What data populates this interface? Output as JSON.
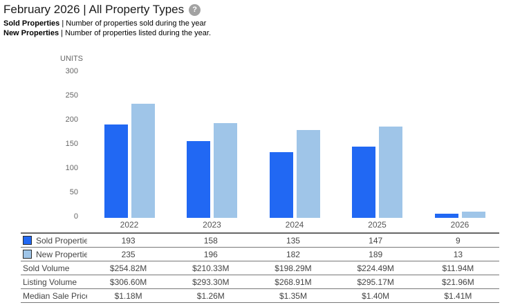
{
  "header": {
    "title": "February 2026 | All Property Types",
    "help_glyph": "?"
  },
  "notes": [
    {
      "term": "Sold Properties",
      "rest": "| Number of properties sold during the year"
    },
    {
      "term": "New Properties",
      "rest": "| Number of properties listed during the year."
    }
  ],
  "chart_data": {
    "type": "bar",
    "title": "February 2026 | All Property Types",
    "categories": [
      "2022",
      "2023",
      "2024",
      "2025",
      "2026"
    ],
    "series": [
      {
        "name": "Sold Properties",
        "color": "#2168f3",
        "values": [
          193,
          158,
          135,
          147,
          9
        ]
      },
      {
        "name": "New Properties",
        "color": "#9fc5e8",
        "values": [
          235,
          196,
          182,
          189,
          13
        ]
      }
    ],
    "xlabel": "",
    "ylabel": "UNITS",
    "ylim": [
      0,
      300
    ],
    "yticks": [
      0,
      50,
      100,
      150,
      200,
      250,
      300
    ],
    "grid": false,
    "legend_position": "table-below"
  },
  "table": {
    "columns": [
      "2022",
      "2023",
      "2024",
      "2025",
      "2026"
    ],
    "rows": [
      {
        "label": "Sold Properties",
        "swatch": "#2168f3",
        "values": [
          "193",
          "158",
          "135",
          "147",
          "9"
        ]
      },
      {
        "label": "New Properties",
        "swatch": "#9fc5e8",
        "values": [
          "235",
          "196",
          "182",
          "189",
          "13"
        ]
      },
      {
        "label": "Sold Volume",
        "values": [
          "$254.82M",
          "$210.33M",
          "$198.29M",
          "$224.49M",
          "$11.94M"
        ]
      },
      {
        "label": "Listing Volume",
        "values": [
          "$306.60M",
          "$293.30M",
          "$268.91M",
          "$295.17M",
          "$21.96M"
        ]
      },
      {
        "label": "Median Sale Price",
        "values": [
          "$1.18M",
          "$1.26M",
          "$1.35M",
          "$1.40M",
          "$1.41M"
        ]
      }
    ]
  },
  "colors": {
    "sold_bar": "#2168f3",
    "new_bar": "#9fc5e8",
    "axis_text": "#666666",
    "table_text": "#444444",
    "table_border": "#777777",
    "help_icon_bg": "#a2a2a2"
  }
}
